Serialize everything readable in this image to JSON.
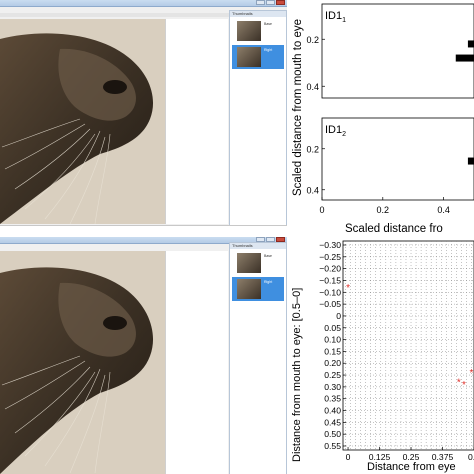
{
  "windows": {
    "top": {
      "side_panel": {
        "header": "Thumbnails",
        "items": [
          {
            "labels": [
              "Base",
              "Right"
            ]
          },
          {
            "labels": [
              "Right"
            ]
          }
        ]
      }
    },
    "bottom": {
      "side_panel": {
        "header": "Thumbnails",
        "items": [
          {
            "labels": [
              "Base",
              "Right"
            ]
          },
          {
            "labels": [
              "Right"
            ]
          }
        ]
      }
    }
  },
  "chart_data": [
    {
      "type": "bar",
      "panel_label": "ID1",
      "panel_label_sub": "1",
      "xlabel": "Scaled distance fro",
      "ylabel": "Scaled distance from mouth to eye",
      "xlim": [
        0,
        0.5
      ],
      "ylim": [
        0.45,
        0.05
      ],
      "xticks": [
        "0",
        "0.2",
        "0.4"
      ],
      "yticks": [
        "0.2",
        "0.4"
      ],
      "bars": [
        {
          "y": 0.28,
          "x0": 0.44,
          "x1": 0.5
        },
        {
          "y": 0.22,
          "x0": 0.48,
          "x1": 0.5
        }
      ],
      "series_color": "#000000"
    },
    {
      "type": "bar",
      "panel_label": "ID1",
      "panel_label_sub": "2",
      "xlim": [
        0,
        0.5
      ],
      "ylim": [
        0.45,
        0.05
      ],
      "xticks": [
        "0",
        "0.2",
        "0.4"
      ],
      "yticks": [
        "0.2",
        "0.4"
      ],
      "bars": [
        {
          "y": 0.26,
          "x0": 0.48,
          "x1": 0.5
        }
      ],
      "series_color": "#000000"
    },
    {
      "type": "scatter",
      "xlabel": "Distance from eye",
      "ylabel": "Distance from mouth to eye: [0.5–0]",
      "xlim": [
        -0.02,
        0.5
      ],
      "ylim": [
        -0.3,
        0.55
      ],
      "xticks": [
        "0",
        "0.125",
        "0.25",
        "0.375",
        "0.5"
      ],
      "xtick_values": [
        0,
        0.125,
        0.25,
        0.375,
        0.5
      ],
      "yticks": [
        "−0.30",
        "−0.25",
        "−0.20",
        "−0.15",
        "−0.10",
        "−0.05",
        "0",
        "0.05",
        "0.10",
        "0.15",
        "0.20",
        "0.25",
        "0.30",
        "0.35",
        "0.40",
        "0.45",
        "0.50",
        "0.55"
      ],
      "ytick_values": [
        -0.3,
        -0.25,
        -0.2,
        -0.15,
        -0.1,
        -0.05,
        0,
        0.05,
        0.1,
        0.15,
        0.2,
        0.25,
        0.3,
        0.35,
        0.4,
        0.45,
        0.5,
        0.55
      ],
      "grid": "dotted",
      "points": [
        {
          "x": 0,
          "y": -0.12
        },
        {
          "x": 0.44,
          "y": 0.28
        },
        {
          "x": 0.46,
          "y": 0.29
        },
        {
          "x": 0.49,
          "y": 0.24
        }
      ],
      "series_color": "#e0302a"
    }
  ]
}
